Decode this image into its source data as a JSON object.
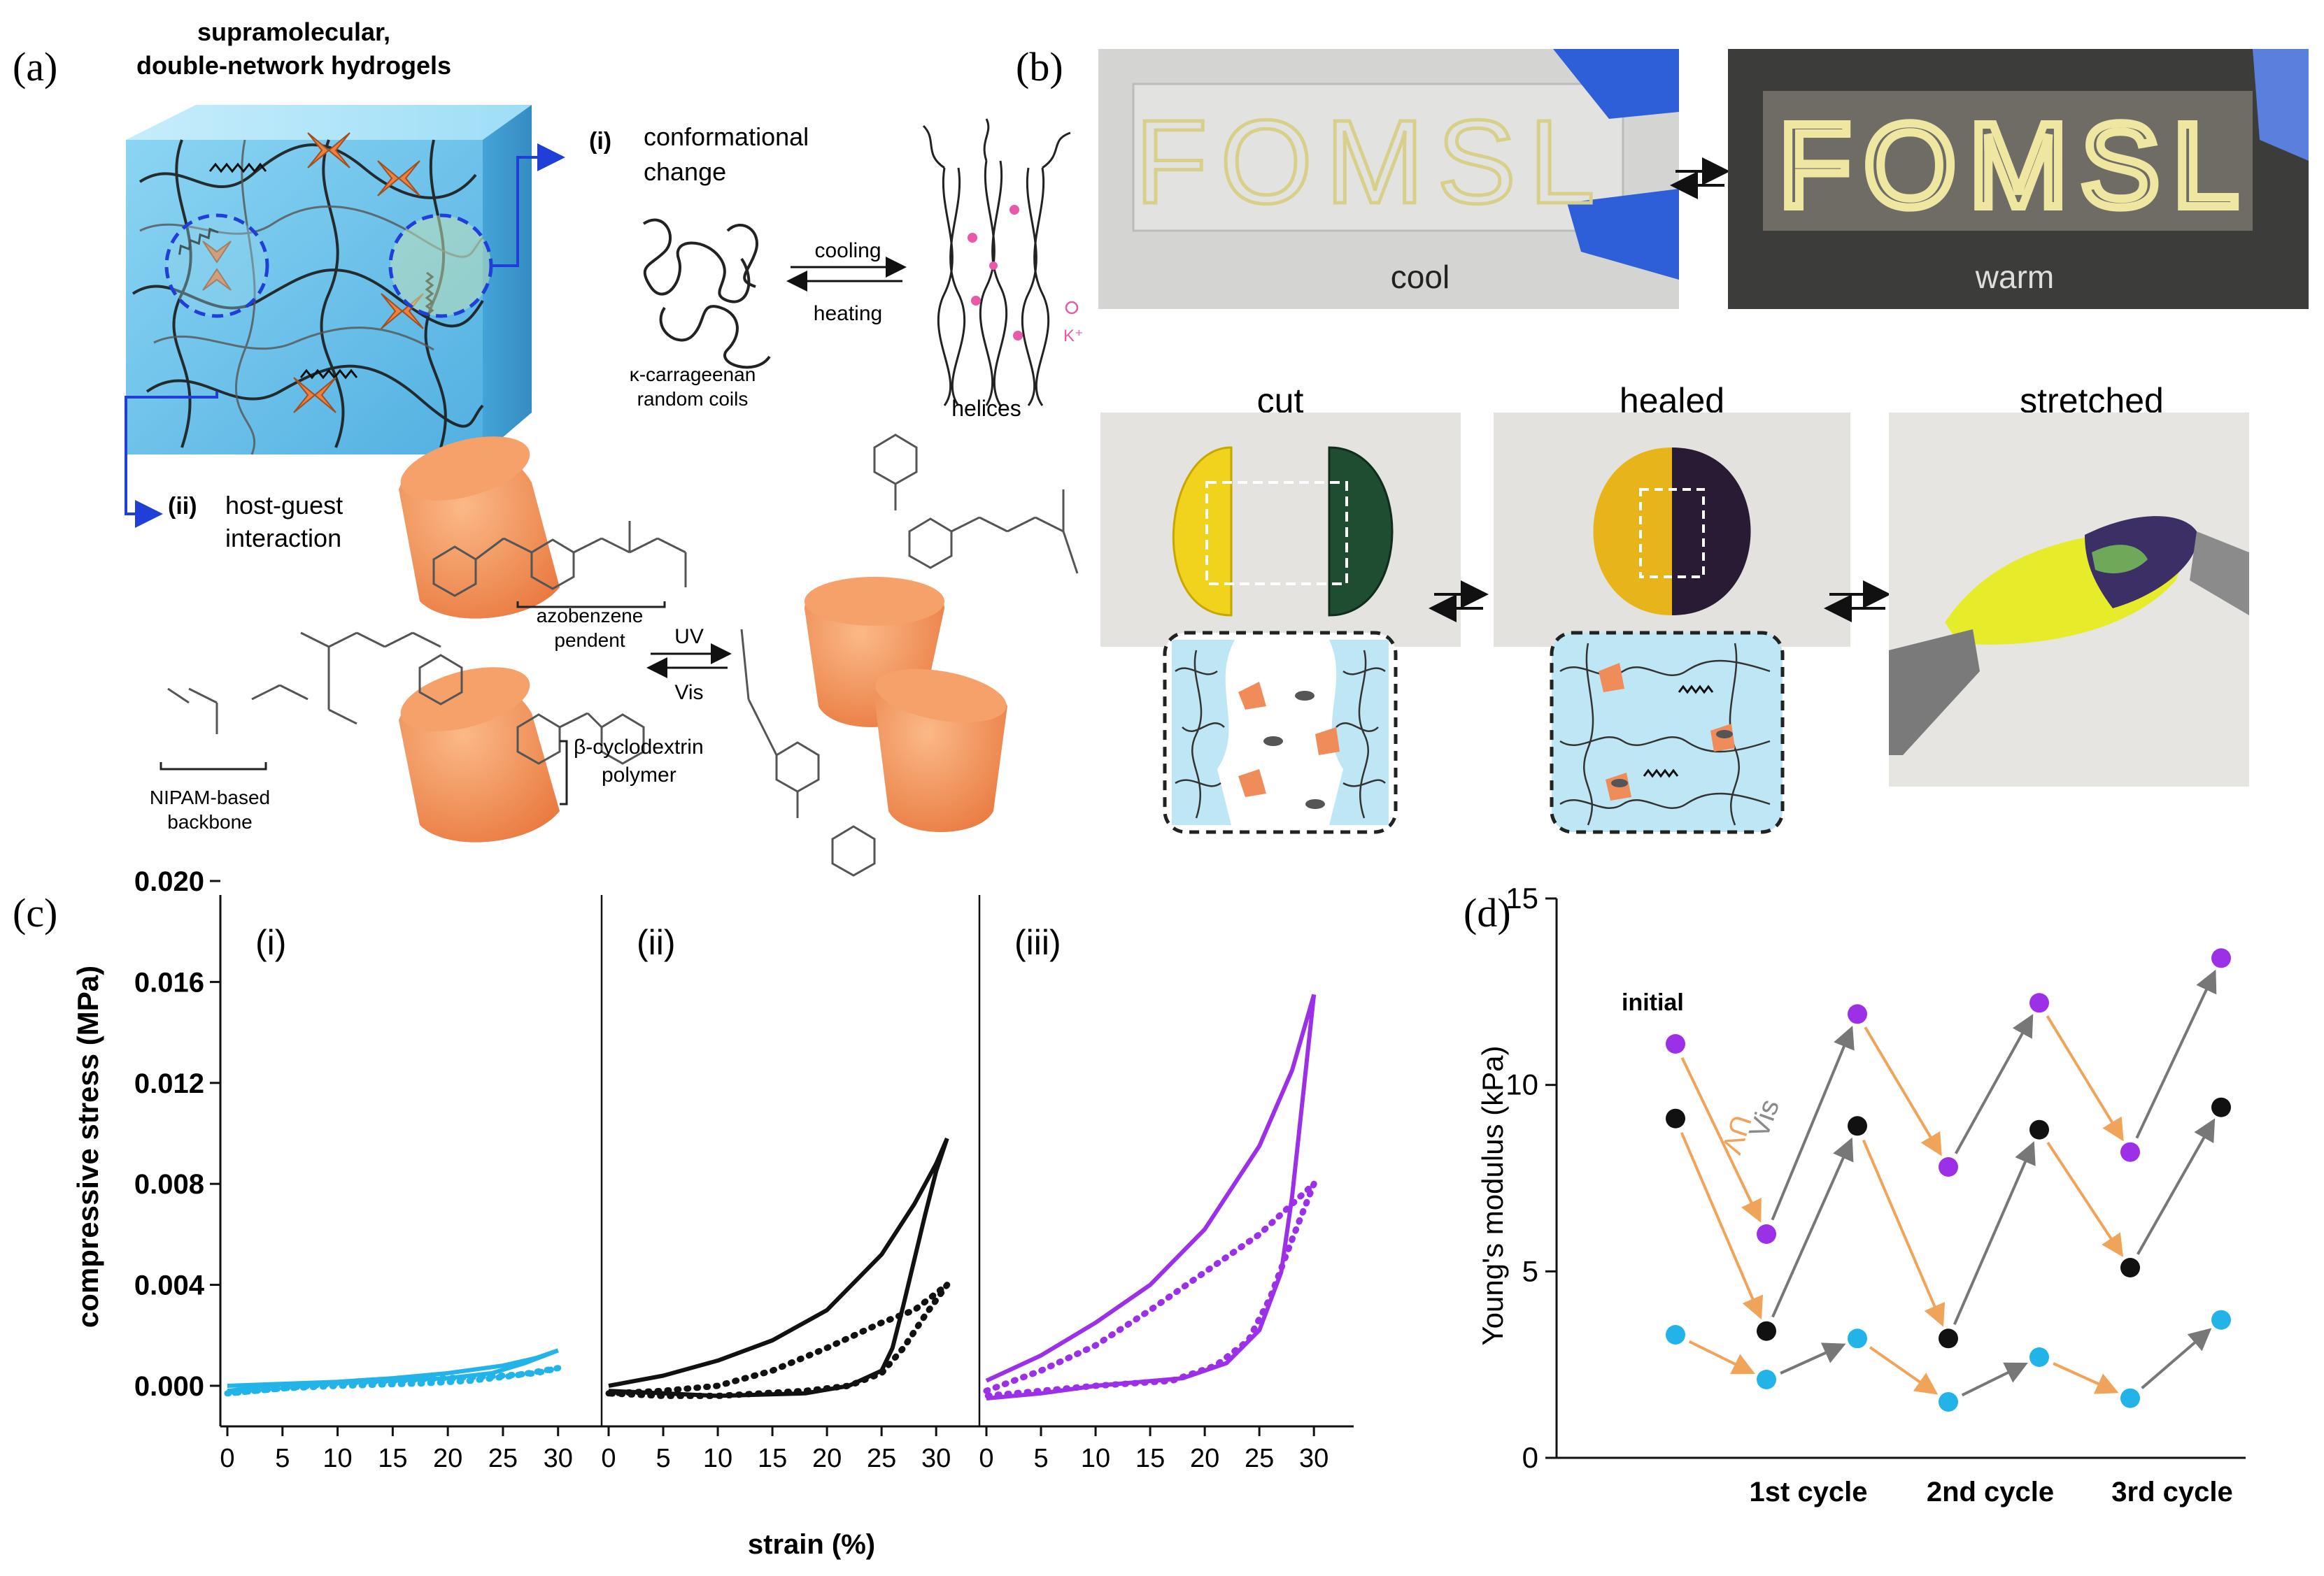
{
  "panels": {
    "a": {
      "letter": "(a)",
      "title_line1": "supramolecular,",
      "title_line2": "double-network hydrogels",
      "i_marker": "(i)",
      "i_label_line1": "conformational",
      "i_label_line2": "change",
      "cooling": "cooling",
      "heating": "heating",
      "coils_line1": "κ-carrageenan",
      "coils_line2": "random coils",
      "helices": "helices",
      "ion": "K⁺",
      "ii_marker": "(ii)",
      "ii_label_line1": "host-guest",
      "ii_label_line2": "interaction",
      "azo_line1": "azobenzene",
      "azo_line2": "pendent",
      "uv": "UV",
      "vis": "Vis",
      "cd_line1": "β-cyclodextrin",
      "cd_line2": "polymer",
      "nipam_line1": "NIPAM-based",
      "nipam_line2": "backbone"
    },
    "b": {
      "letter": "(b)",
      "photo_text": "FOMSL",
      "cool": "cool",
      "warm": "warm",
      "cut": "cut",
      "healed": "healed",
      "stretched": "stretched"
    },
    "c": {
      "letter": "(c)",
      "ylabel": "compressive stress (MPa)",
      "xlabel": "strain (%)",
      "subplot_labels": [
        "(i)",
        "(ii)",
        "(iii)"
      ]
    },
    "d": {
      "letter": "(d)",
      "ylabel": "Young's modulus (kPa)",
      "initial": "initial",
      "uv": "UV",
      "vis": "Vis"
    }
  },
  "chart_data": [
    {
      "type": "line",
      "panel": "c",
      "ylabel": "compressive stress (MPa)",
      "xlabel": "strain (%)",
      "ylim": [
        0,
        0.02
      ],
      "xlim": [
        0,
        30
      ],
      "y_ticks": [
        "0.020",
        "0.016",
        "0.012",
        "0.008",
        "0.004",
        "0.000"
      ],
      "x_ticks": [
        "0",
        "5",
        "10",
        "15",
        "20",
        "25",
        "30"
      ],
      "subplots": [
        {
          "label": "(i)",
          "color": "#22b4e8",
          "solid_loading": [
            [
              0,
              0
            ],
            [
              5,
              8e-05
            ],
            [
              10,
              0.00016
            ],
            [
              15,
              0.0003
            ],
            [
              20,
              0.0005
            ],
            [
              25,
              0.0008
            ],
            [
              28,
              0.0011
            ],
            [
              30,
              0.0014
            ]
          ],
          "solid_unloading": [
            [
              30,
              0.0014
            ],
            [
              27,
              0.0009
            ],
            [
              24,
              0.0005
            ],
            [
              20,
              0.0003
            ],
            [
              15,
              0.0002
            ],
            [
              10,
              0.0001
            ],
            [
              5,
              5e-05
            ],
            [
              0,
              -0.0002
            ]
          ],
          "dotted_loading": [
            [
              0,
              -0.0003
            ],
            [
              5,
              -0.0001
            ],
            [
              10,
              0.0001
            ],
            [
              15,
              0.0002
            ],
            [
              20,
              0.0003
            ],
            [
              25,
              0.0004
            ],
            [
              28,
              0.0005
            ],
            [
              30,
              0.0007
            ]
          ],
          "dotted_unloading": [
            [
              30,
              0.0007
            ],
            [
              26,
              0.0004
            ],
            [
              22,
              0.0002
            ],
            [
              18,
              0.0001
            ],
            [
              14,
              5e-05
            ],
            [
              10,
              0.0
            ],
            [
              5,
              -0.0001
            ],
            [
              0,
              -0.0003
            ]
          ]
        },
        {
          "label": "(ii)",
          "color": "#111111",
          "solid_loading": [
            [
              0,
              0.0
            ],
            [
              5,
              0.0004
            ],
            [
              10,
              0.001
            ],
            [
              15,
              0.0018
            ],
            [
              20,
              0.003
            ],
            [
              25,
              0.0052
            ],
            [
              28,
              0.0072
            ],
            [
              30,
              0.0088
            ],
            [
              31,
              0.0098
            ]
          ],
          "solid_unloading": [
            [
              31,
              0.0098
            ],
            [
              30,
              0.0085
            ],
            [
              29,
              0.0068
            ],
            [
              28,
              0.005
            ],
            [
              27,
              0.0032
            ],
            [
              26,
              0.0015
            ],
            [
              25,
              0.0006
            ],
            [
              22,
              0.0
            ],
            [
              18,
              -0.0003
            ],
            [
              10,
              -0.0004
            ],
            [
              5,
              -0.0003
            ],
            [
              0,
              -0.0002
            ]
          ],
          "dotted_loading": [
            [
              0,
              -0.0003
            ],
            [
              5,
              -0.0002
            ],
            [
              10,
              0.0
            ],
            [
              15,
              0.0006
            ],
            [
              20,
              0.0015
            ],
            [
              25,
              0.0025
            ],
            [
              28,
              0.003
            ],
            [
              31,
              0.004
            ]
          ],
          "dotted_unloading": [
            [
              31,
              0.004
            ],
            [
              29,
              0.0028
            ],
            [
              27,
              0.0015
            ],
            [
              25,
              0.0005
            ],
            [
              22,
              0.0
            ],
            [
              18,
              -0.0002
            ],
            [
              10,
              -0.0004
            ],
            [
              5,
              -0.0004
            ],
            [
              0,
              -0.0003
            ]
          ]
        },
        {
          "label": "(iii)",
          "color": "#9b30e6",
          "solid_loading": [
            [
              0,
              0.0002
            ],
            [
              5,
              0.0012
            ],
            [
              10,
              0.0025
            ],
            [
              15,
              0.004
            ],
            [
              20,
              0.0062
            ],
            [
              25,
              0.0095
            ],
            [
              28,
              0.0125
            ],
            [
              30,
              0.0155
            ]
          ],
          "solid_unloading": [
            [
              30,
              0.0155
            ],
            [
              29,
              0.0115
            ],
            [
              28,
              0.0075
            ],
            [
              27,
              0.0045
            ],
            [
              25,
              0.0022
            ],
            [
              22,
              0.0009
            ],
            [
              18,
              0.0003
            ],
            [
              10,
              0.0
            ],
            [
              5,
              -0.0003
            ],
            [
              0,
              -0.0005
            ]
          ],
          "dotted_loading": [
            [
              0,
              -0.0002
            ],
            [
              5,
              0.0006
            ],
            [
              10,
              0.0016
            ],
            [
              15,
              0.003
            ],
            [
              20,
              0.0045
            ],
            [
              25,
              0.006
            ],
            [
              28,
              0.0072
            ],
            [
              30,
              0.008
            ]
          ],
          "dotted_unloading": [
            [
              30,
              0.008
            ],
            [
              28,
              0.0058
            ],
            [
              26,
              0.0035
            ],
            [
              24,
              0.0018
            ],
            [
              21,
              0.0008
            ],
            [
              17,
              0.0002
            ],
            [
              10,
              0.0
            ],
            [
              5,
              -0.0002
            ],
            [
              0,
              -0.0004
            ]
          ]
        }
      ]
    },
    {
      "type": "scatter",
      "panel": "d",
      "ylabel": "Young's modulus (kPa)",
      "ylim": [
        0,
        15
      ],
      "y_ticks": [
        "0",
        "5",
        "10",
        "15"
      ],
      "categories": [
        "1st cycle",
        "2nd cycle",
        "3rd cycle"
      ],
      "x": [
        0,
        1,
        2,
        3,
        4,
        5,
        6
      ],
      "series": [
        {
          "color": "#9b30e6",
          "values": [
            11.1,
            6.0,
            11.9,
            7.8,
            12.2,
            8.2,
            13.4
          ]
        },
        {
          "color": "#111111",
          "values": [
            9.1,
            3.4,
            8.9,
            3.2,
            8.8,
            5.1,
            9.4
          ]
        },
        {
          "color": "#22b4e8",
          "values": [
            3.3,
            2.1,
            3.2,
            1.5,
            2.7,
            1.6,
            3.7
          ]
        }
      ],
      "arrow_colors": {
        "uv": "#f0a45a",
        "vis": "#777777"
      }
    }
  ]
}
